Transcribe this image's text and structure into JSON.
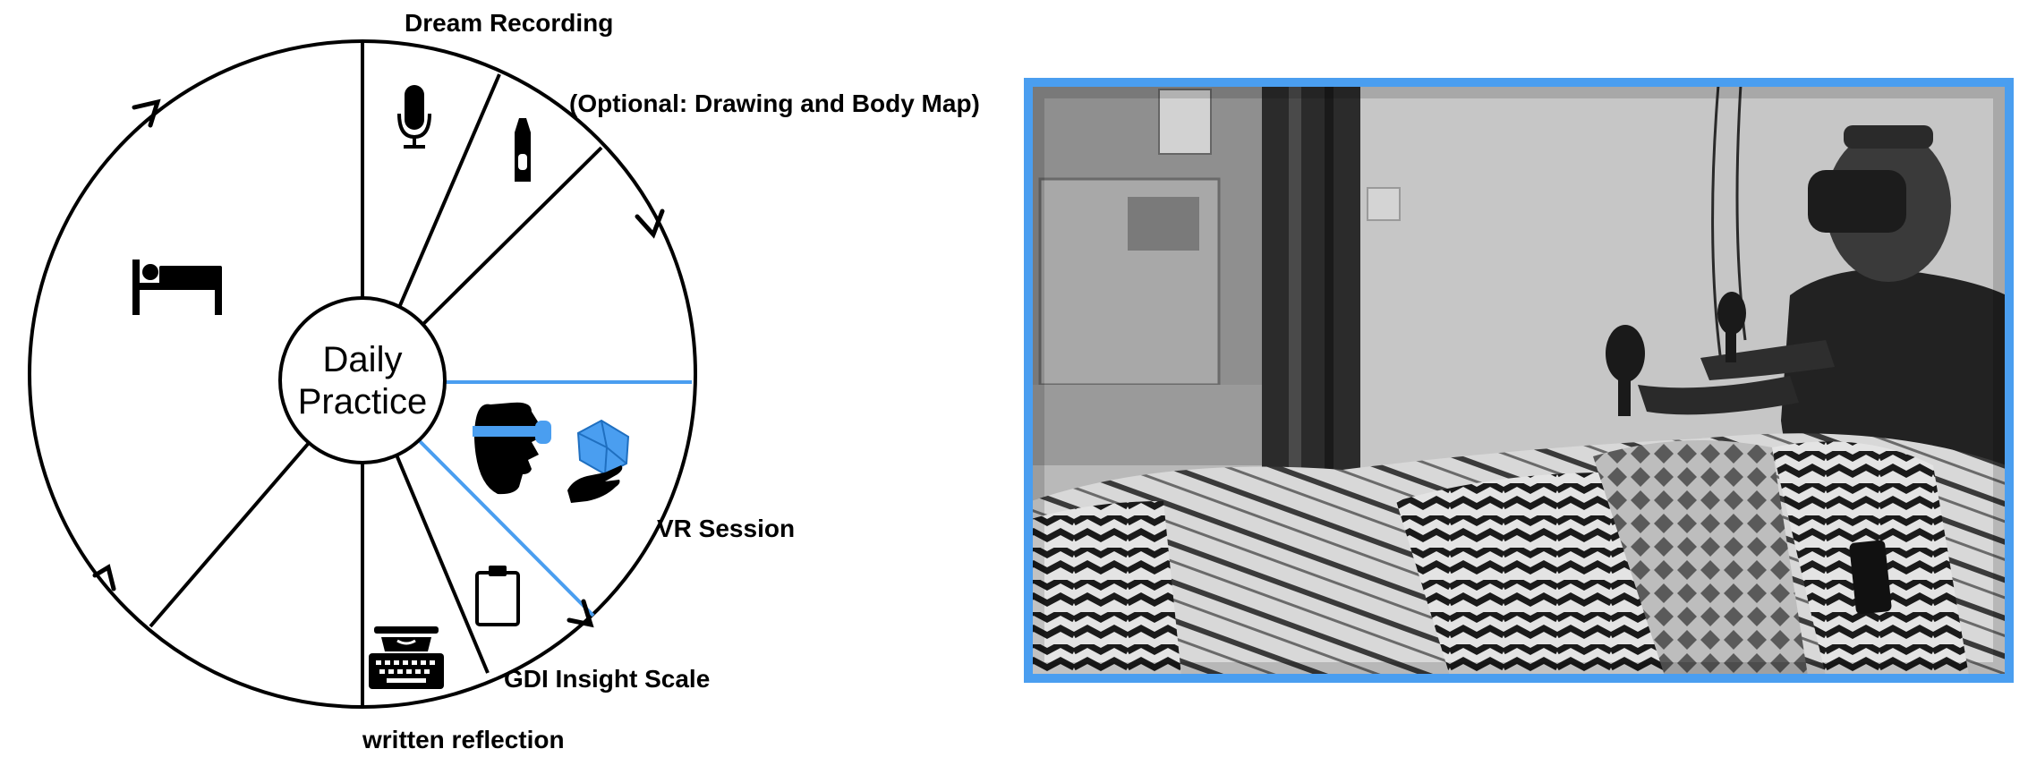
{
  "diagram": {
    "center_label_line1": "Daily",
    "center_label_line2": "Practice",
    "labels": {
      "dream_recording": "Dream Recording",
      "optional_drawing": "(Optional: Drawing and Body Map)",
      "vr_session": "VR Session",
      "gdi_insight_scale": "GDI Insight Scale",
      "written_reflection": "written reflection"
    },
    "colors": {
      "accent": "#4a9ef0",
      "ink": "#000000"
    },
    "icons": [
      "bed-icon",
      "microphone-icon",
      "crayon-icon",
      "vr-headset-head-icon",
      "hand-with-crystal-icon",
      "clipboard-icon",
      "typewriter-icon"
    ]
  },
  "photo": {
    "border_color": "#4a9ef0",
    "subject": "photo-vr-participant-in-bed"
  }
}
